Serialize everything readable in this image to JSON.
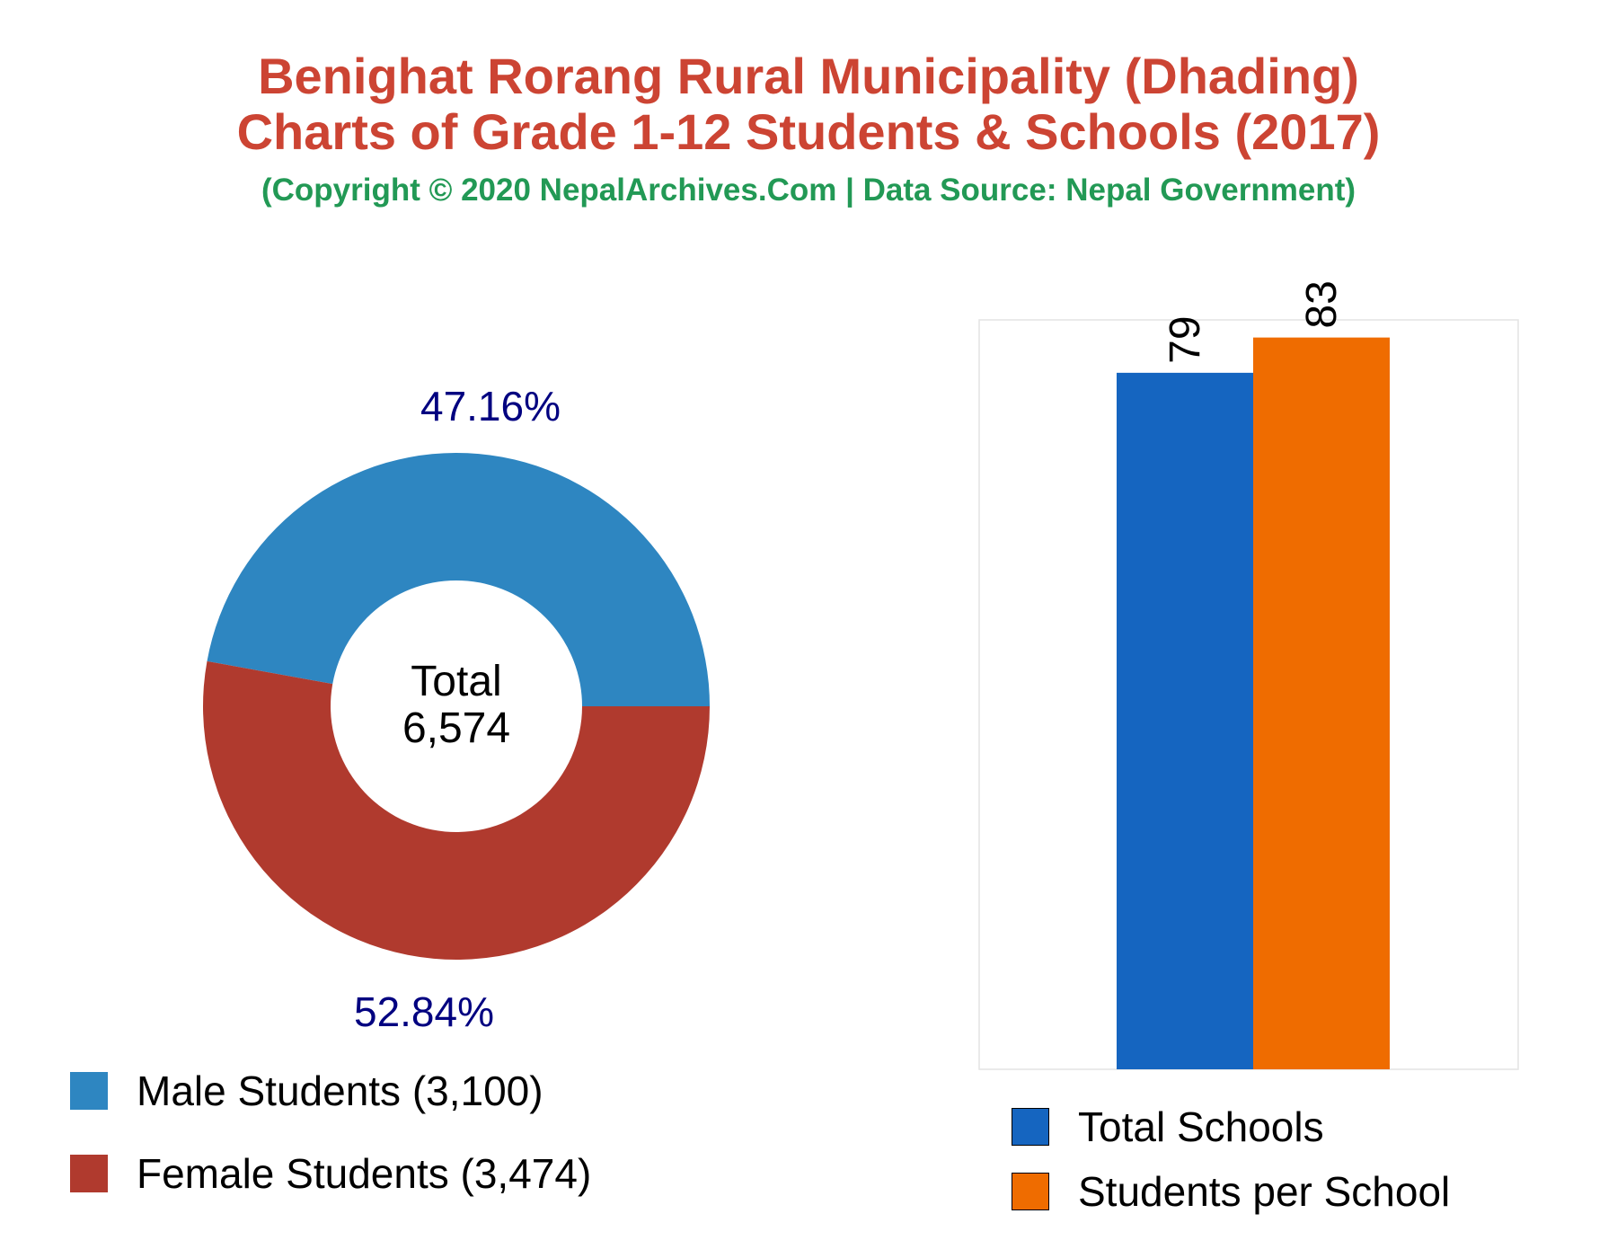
{
  "header": {
    "title_line_1": "Benighat Rorang Rural Municipality (Dhading)",
    "title_line_2": "Charts of Grade 1-12 Students & Schools (2017)",
    "subtitle": "(Copyright © 2020 NepalArchives.Com | Data Source: Nepal Government)",
    "title_color": "#cc4433",
    "subtitle_color": "#229955"
  },
  "chart_data": [
    {
      "type": "pie",
      "style": "donut",
      "center_label": "Total",
      "center_value": "6,574",
      "slices": [
        {
          "name": "Male Students",
          "value": 3100,
          "percent_label": "47.16%",
          "legend_label": "Male Students (3,100)",
          "color": "#2e86c1"
        },
        {
          "name": "Female Students",
          "value": 3474,
          "percent_label": "52.84%",
          "legend_label": "Female Students (3,474)",
          "color": "#b03a2e"
        }
      ],
      "label_color": "#000080",
      "legend_placement": "bottom-left"
    },
    {
      "type": "bar",
      "series": [
        {
          "name": "Total Schools",
          "value": 79,
          "value_label": "79",
          "color": "#1565c0"
        },
        {
          "name": "Students per School",
          "value": 83,
          "value_label": "83",
          "color": "#ef6c00"
        }
      ],
      "ylim": [
        0,
        85
      ],
      "grid": false,
      "axes_visible": false,
      "legend_placement": "bottom"
    }
  ]
}
